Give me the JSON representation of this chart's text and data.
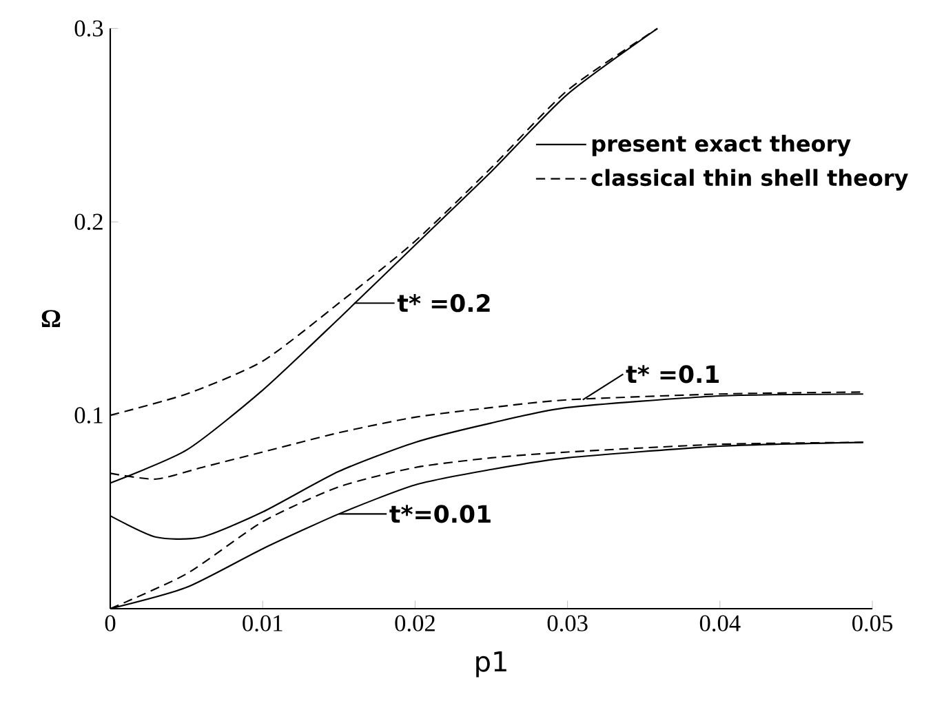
{
  "chart_data": {
    "type": "line",
    "xlabel": "p1",
    "ylabel": "Ω",
    "xlim": [
      0,
      0.05
    ],
    "ylim": [
      0,
      0.3
    ],
    "xticks": [
      0,
      0.01,
      0.02,
      0.03,
      0.04,
      0.05
    ],
    "yticks": [
      {
        "value": 0,
        "label": null
      },
      0.1,
      0.2,
      0.3
    ],
    "grid": false,
    "legend": "top right",
    "marker": "none",
    "series": [
      {
        "name": "present exact theory",
        "color": "#000000",
        "line_style": "solid",
        "x": [
          0,
          0.005,
          0.01,
          0.015,
          0.02,
          0.025,
          0.03,
          0.0359
        ],
        "values": [
          0.065,
          0.082,
          0.113,
          0.15,
          0.188,
          0.226,
          0.266,
          0.3
        ]
      },
      {
        "name": "classical thin shell theory",
        "color": "#000000",
        "line_style": "dashed",
        "x": [
          0,
          0.005,
          0.01,
          0.015,
          0.02,
          0.025,
          0.03,
          0.0359
        ],
        "values": [
          0.1,
          0.111,
          0.128,
          0.158,
          0.19,
          0.228,
          0.268,
          0.3
        ]
      },
      {
        "color": "#000000",
        "line_style": "solid",
        "x": [
          0,
          0.003,
          0.006,
          0.01,
          0.015,
          0.02,
          0.025,
          0.03,
          0.04,
          0.0494
        ],
        "values": [
          0.048,
          0.037,
          0.037,
          0.05,
          0.071,
          0.086,
          0.096,
          0.104,
          0.11,
          0.111
        ]
      },
      {
        "color": "#000000",
        "line_style": "dashed",
        "x": [
          0,
          0.003,
          0.006,
          0.01,
          0.015,
          0.02,
          0.025,
          0.03,
          0.04,
          0.0494
        ],
        "values": [
          0.07,
          0.067,
          0.073,
          0.081,
          0.091,
          0.099,
          0.104,
          0.108,
          0.111,
          0.112
        ]
      },
      {
        "color": "#000000",
        "line_style": "solid",
        "x": [
          0,
          0.005,
          0.01,
          0.015,
          0.02,
          0.025,
          0.03,
          0.04,
          0.0494
        ],
        "values": [
          0,
          0.011,
          0.031,
          0.049,
          0.064,
          0.072,
          0.078,
          0.084,
          0.086
        ]
      },
      {
        "color": "#000000",
        "line_style": "dashed",
        "x": [
          0,
          0.005,
          0.01,
          0.015,
          0.02,
          0.025,
          0.03,
          0.04,
          0.0494
        ],
        "values": [
          0,
          0.018,
          0.045,
          0.063,
          0.073,
          0.078,
          0.081,
          0.085,
          0.086
        ]
      }
    ],
    "annotations": [
      {
        "text": "t* =0.2",
        "x": 0.016,
        "y": 0.158
      },
      {
        "text": "t* =0.1",
        "x": 0.031,
        "y": 0.108
      },
      {
        "text": "t*=0.01",
        "x": 0.015,
        "y": 0.049
      }
    ]
  }
}
